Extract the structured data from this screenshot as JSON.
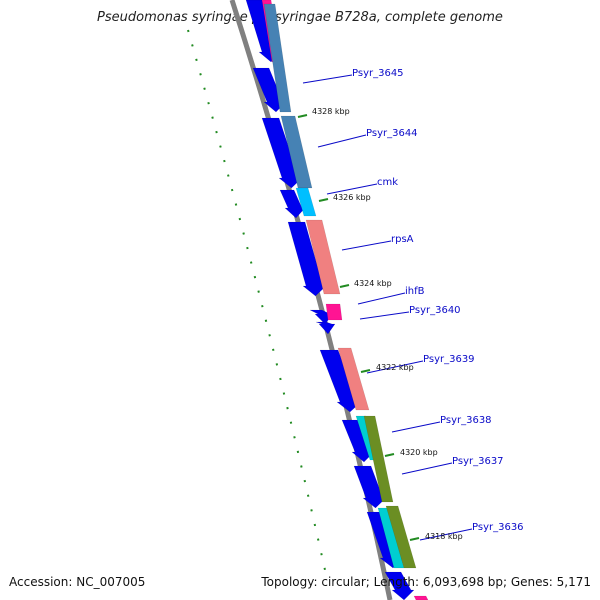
{
  "map": {
    "title": "Pseudomonas syringae pv. syringae B728a, complete genome",
    "accession": "Accession: NC_007005",
    "topology": "Topology: circular; Length: 6,093,698 bp; Genes: 5,171"
  },
  "colors": {
    "cds_arrow": "#0000ee",
    "backbone": "#808080",
    "gc_skew_dots": "#228b22",
    "steelblue": "#4682b4",
    "cyan": "#00bfff",
    "salmon": "#f08080",
    "pink": "#ff1493",
    "olive": "#6b8e23",
    "turquoise": "#00ced1"
  },
  "ticks": [
    "4328 kbp",
    "4326 kbp",
    "4324 kbp",
    "4322 kbp",
    "4320 kbp",
    "4318 kbp"
  ],
  "genes": [
    "Psyr_3645",
    "Psyr_3644",
    "cmk",
    "rpsA",
    "ihfB",
    "Psyr_3640",
    "Psyr_3639",
    "Psyr_3638",
    "Psyr_3637",
    "Psyr_3636"
  ]
}
